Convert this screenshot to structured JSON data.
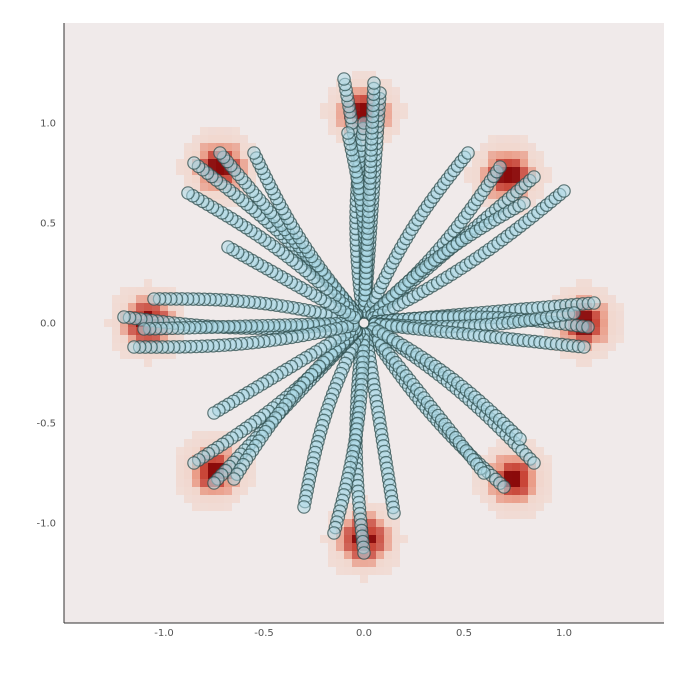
{
  "chart_data": {
    "type": "scatter",
    "title": "",
    "xlabel": "",
    "ylabel": "",
    "xlim": [
      -1.5,
      1.5
    ],
    "ylim": [
      -1.5,
      1.5
    ],
    "grid": false,
    "xticks": [
      -1.0,
      -0.5,
      0.0,
      0.5,
      1.0
    ],
    "xtick_labels": [
      "-1.0",
      "-0.5",
      "0.0",
      "0.5",
      "1.0"
    ],
    "yticks": [
      -1.0,
      -0.5,
      0.0,
      0.5,
      1.0
    ],
    "ytick_labels": [
      "-1.0",
      "-0.5",
      "0.0",
      "0.5",
      "1.0"
    ],
    "background_color": "#f0eaea",
    "point_fill": "#add8e6",
    "point_edge": "#2f4f4f",
    "density_colors": [
      "#f0eaea",
      "#f2c9b9",
      "#e8856a",
      "#c63a2b",
      "#8b0a0a"
    ],
    "density_peaks": [
      {
        "x": 0.0,
        "y": 1.05
      },
      {
        "x": 0.72,
        "y": 0.74
      },
      {
        "x": 1.1,
        "y": 0.0
      },
      {
        "x": 0.75,
        "y": -0.78
      },
      {
        "x": 0.0,
        "y": -1.08
      },
      {
        "x": -0.75,
        "y": -0.74
      },
      {
        "x": -1.08,
        "y": 0.0
      },
      {
        "x": -0.72,
        "y": 0.78
      }
    ],
    "strands": [
      {
        "from": [
          0.0,
          0.0
        ],
        "to": [
          -0.1,
          1.22
        ]
      },
      {
        "from": [
          0.0,
          0.0
        ],
        "to": [
          0.08,
          1.15
        ]
      },
      {
        "from": [
          0.0,
          0.0
        ],
        "to": [
          0.0,
          1.0
        ]
      },
      {
        "from": [
          0.0,
          0.0
        ],
        "to": [
          -0.08,
          0.95
        ]
      },
      {
        "from": [
          0.0,
          0.0
        ],
        "to": [
          0.05,
          1.2
        ]
      },
      {
        "from": [
          0.0,
          0.0
        ],
        "to": [
          0.52,
          0.85
        ]
      },
      {
        "from": [
          0.0,
          0.0
        ],
        "to": [
          0.68,
          0.78
        ]
      },
      {
        "from": [
          0.0,
          0.0
        ],
        "to": [
          0.85,
          0.73
        ]
      },
      {
        "from": [
          0.0,
          0.0
        ],
        "to": [
          0.8,
          0.6
        ]
      },
      {
        "from": [
          0.0,
          0.0
        ],
        "to": [
          1.0,
          0.66
        ]
      },
      {
        "from": [
          0.0,
          0.0
        ],
        "to": [
          1.15,
          0.1
        ]
      },
      {
        "from": [
          0.0,
          0.0
        ],
        "to": [
          1.12,
          -0.02
        ]
      },
      {
        "from": [
          0.0,
          0.0
        ],
        "to": [
          1.05,
          0.05
        ]
      },
      {
        "from": [
          0.0,
          0.0
        ],
        "to": [
          1.1,
          -0.12
        ]
      },
      {
        "from": [
          0.0,
          0.0
        ],
        "to": [
          0.85,
          -0.7
        ]
      },
      {
        "from": [
          0.0,
          0.0
        ],
        "to": [
          0.7,
          -0.82
        ]
      },
      {
        "from": [
          0.0,
          0.0
        ],
        "to": [
          0.6,
          -0.75
        ]
      },
      {
        "from": [
          0.0,
          0.0
        ],
        "to": [
          0.78,
          -0.58
        ]
      },
      {
        "from": [
          0.0,
          0.0
        ],
        "to": [
          0.0,
          -1.15
        ]
      },
      {
        "from": [
          0.0,
          0.0
        ],
        "to": [
          0.15,
          -0.95
        ]
      },
      {
        "from": [
          0.0,
          0.0
        ],
        "to": [
          -0.15,
          -1.05
        ]
      },
      {
        "from": [
          0.0,
          0.0
        ],
        "to": [
          -0.3,
          -0.92
        ]
      },
      {
        "from": [
          0.0,
          0.0
        ],
        "to": [
          -0.75,
          -0.8
        ]
      },
      {
        "from": [
          0.0,
          0.0
        ],
        "to": [
          -0.85,
          -0.7
        ]
      },
      {
        "from": [
          0.0,
          0.0
        ],
        "to": [
          -0.65,
          -0.78
        ]
      },
      {
        "from": [
          0.0,
          0.0
        ],
        "to": [
          -0.75,
          -0.45
        ]
      },
      {
        "from": [
          0.0,
          0.0
        ],
        "to": [
          -1.2,
          0.03
        ]
      },
      {
        "from": [
          0.0,
          0.0
        ],
        "to": [
          -1.05,
          0.12
        ]
      },
      {
        "from": [
          0.0,
          0.0
        ],
        "to": [
          -1.1,
          -0.03
        ]
      },
      {
        "from": [
          0.0,
          0.0
        ],
        "to": [
          -1.15,
          -0.12
        ]
      },
      {
        "from": [
          0.0,
          0.0
        ],
        "to": [
          -0.85,
          0.8
        ]
      },
      {
        "from": [
          0.0,
          0.0
        ],
        "to": [
          -0.72,
          0.85
        ]
      },
      {
        "from": [
          0.0,
          0.0
        ],
        "to": [
          -0.55,
          0.85
        ]
      },
      {
        "from": [
          0.0,
          0.0
        ],
        "to": [
          -0.88,
          0.65
        ]
      },
      {
        "from": [
          0.0,
          0.0
        ],
        "to": [
          -0.68,
          0.38
        ]
      }
    ]
  }
}
